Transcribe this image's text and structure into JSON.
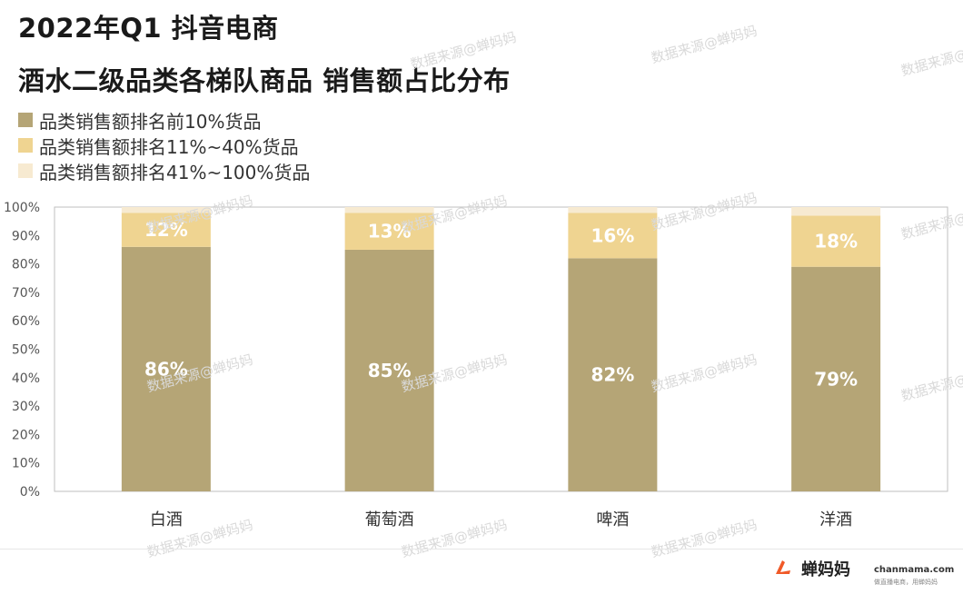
{
  "title_line1": "2022年Q1 抖音电商",
  "title_line2": "酒水二级品类各梯队商品 销售额占比分布",
  "legend": [
    {
      "label": "品类销售额排名前10%货品",
      "color": "#b5a576"
    },
    {
      "label": "品类销售额排名11%~40%货品",
      "color": "#efd491"
    },
    {
      "label": "品类销售额排名41%~100%货品",
      "color": "#f7ead1"
    }
  ],
  "watermark": "数据来源@蝉妈妈",
  "brand": {
    "name": "蝉妈妈",
    "site": "chanmama.com",
    "slogan": "做直播电商，用蝉妈妈"
  },
  "chart_data": {
    "type": "bar",
    "stacked": true,
    "categories": [
      "白酒",
      "葡萄酒",
      "啤酒",
      "洋酒"
    ],
    "series": [
      {
        "name": "品类销售额排名前10%货品",
        "values": [
          86,
          85,
          82,
          79
        ],
        "color": "#b5a576"
      },
      {
        "name": "品类销售额排名11%~40%货品",
        "values": [
          12,
          13,
          16,
          18
        ],
        "color": "#efd491"
      },
      {
        "name": "品类销售额排名41%~100%货品",
        "values": [
          2,
          2,
          2,
          3
        ],
        "color": "#f7ead1"
      }
    ],
    "data_labels": [
      [
        "86%",
        "85%",
        "82%",
        "79%"
      ],
      [
        "12%",
        "13%",
        "16%",
        "18%"
      ]
    ],
    "ylim": [
      0,
      100
    ],
    "yticks": [
      "0%",
      "10%",
      "20%",
      "30%",
      "40%",
      "50%",
      "60%",
      "70%",
      "80%",
      "90%",
      "100%"
    ],
    "grid": false,
    "legend_position": "top-left"
  }
}
